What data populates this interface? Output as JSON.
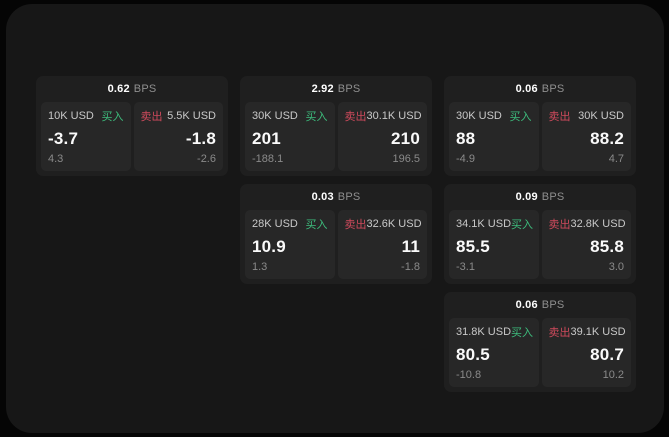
{
  "colors": {
    "page_bg": "#050505",
    "window_bg": "#171717",
    "card_bg": "#1f1f1f",
    "panel_bg": "#272727",
    "buy_green": "#3dbd7d",
    "sell_red": "#cf4a5c",
    "value_white": "#fafafa",
    "muted_gray": "#8a8a8a"
  },
  "labels": {
    "bps_unit": "BPS",
    "buy": "买入",
    "sell": "卖出"
  },
  "cards": [
    {
      "bps": "0.62",
      "buy": {
        "amount": "10K USD",
        "price": "-3.7",
        "delta": "4.3"
      },
      "sell": {
        "amount": "5.5K USD",
        "price": "-1.8",
        "delta": "-2.6"
      }
    },
    {
      "bps": "2.92",
      "buy": {
        "amount": "30K USD",
        "price": "201",
        "delta": "-188.1"
      },
      "sell": {
        "amount": "30.1K USD",
        "price": "210",
        "delta": "196.5"
      }
    },
    {
      "bps": "0.06",
      "buy": {
        "amount": "30K USD",
        "price": "88",
        "delta": "-4.9"
      },
      "sell": {
        "amount": "30K USD",
        "price": "88.2",
        "delta": "4.7"
      }
    },
    {
      "bps": "0.03",
      "buy": {
        "amount": "28K USD",
        "price": "10.9",
        "delta": "1.3"
      },
      "sell": {
        "amount": "32.6K USD",
        "price": "11",
        "delta": "-1.8"
      }
    },
    {
      "bps": "0.09",
      "buy": {
        "amount": "34.1K USD",
        "price": "85.5",
        "delta": "-3.1"
      },
      "sell": {
        "amount": "32.8K USD",
        "price": "85.8",
        "delta": "3.0"
      }
    },
    {
      "bps": "0.06",
      "buy": {
        "amount": "31.8K USD",
        "price": "80.5",
        "delta": "-10.8"
      },
      "sell": {
        "amount": "39.1K USD",
        "price": "80.7",
        "delta": "10.2"
      }
    }
  ]
}
